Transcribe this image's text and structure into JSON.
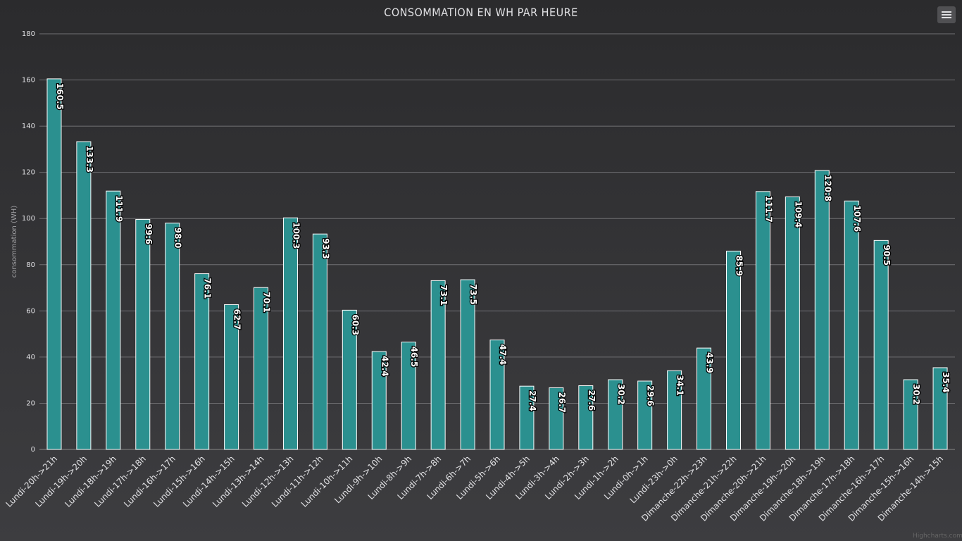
{
  "chart_data": {
    "type": "bar",
    "title": "CONSOMMATION EN WH PAR HEURE",
    "ylabel": "consommation (WH)",
    "xlabel": "",
    "ylim": [
      0,
      180
    ],
    "yticks": [
      0,
      20,
      40,
      60,
      80,
      100,
      120,
      140,
      160,
      180
    ],
    "grid": true,
    "categories": [
      "Lundi-20h->21h",
      "Lundi-19h->20h",
      "Lundi-18h->19h",
      "Lundi-17h->18h",
      "Lundi-16h->17h",
      "Lundi-15h->16h",
      "Lundi-14h->15h",
      "Lundi-13h->14h",
      "Lundi-12h->13h",
      "Lundi-11h->12h",
      "Lundi-10h->11h",
      "Lundi-9h->10h",
      "Lundi-8h->9h",
      "Lundi-7h->8h",
      "Lundi-6h->7h",
      "Lundi-5h->6h",
      "Lundi-4h->5h",
      "Lundi-3h->4h",
      "Lundi-2h->3h",
      "Lundi-1h->2h",
      "Lundi-0h->1h",
      "Lundi-23h->0h",
      "Dimanche-22h->23h",
      "Dimanche-21h->22h",
      "Dimanche-20h->21h",
      "Dimanche-19h->20h",
      "Dimanche-18h->19h",
      "Dimanche-17h->18h",
      "Dimanche-16h->17h",
      "Dimanche-15h->16h",
      "Dimanche-14h->15h"
    ],
    "values": [
      160.5,
      133.3,
      111.9,
      99.6,
      98.0,
      76.1,
      62.7,
      70.1,
      100.3,
      93.3,
      60.3,
      42.4,
      46.5,
      73.1,
      73.5,
      47.4,
      27.4,
      26.7,
      27.6,
      30.2,
      29.6,
      34.1,
      43.9,
      85.9,
      111.7,
      109.4,
      120.8,
      107.6,
      90.5,
      30.2,
      35.4
    ],
    "data_labels": [
      "160.5",
      "133.3",
      "111.9",
      "99.6",
      "98.0",
      "76.1",
      "62.7",
      "70.1",
      "100.3",
      "93.3",
      "60.3",
      "42.4",
      "46.5",
      "73.1",
      "73.5",
      "47.4",
      "27.4",
      "26.7",
      "27.6",
      "30.2",
      "29.6",
      "34.1",
      "43.9",
      "85.9",
      "111.7",
      "109.4",
      "120.8",
      "107.6",
      "90.5",
      "30.2",
      "35.4"
    ],
    "bar_color": "#2b908f",
    "bar_border_color": "#ffffff"
  },
  "ui": {
    "menu_icon": "hamburger-menu-icon",
    "credits": "Highcharts.com"
  }
}
